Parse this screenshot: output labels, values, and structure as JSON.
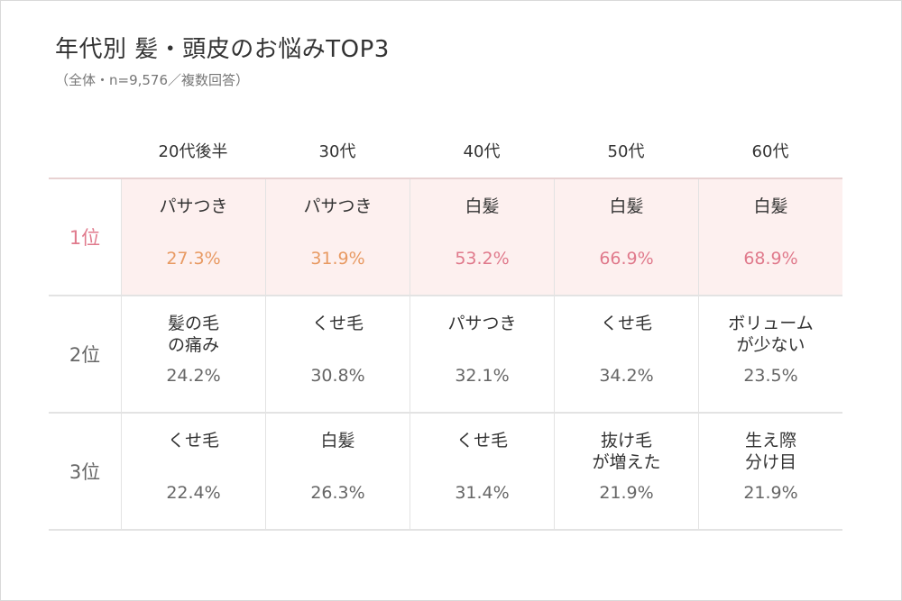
{
  "title": "年代別 髪・頭皮のお悩みTOP3",
  "subtitle": "（全体・n=9,576／複数回答）",
  "colors": {
    "orange": "#e89a63",
    "pink": "#e07a8c",
    "highlight_bg": "#fdf0ef",
    "text": "#333333",
    "muted": "#666666"
  },
  "chart_data": {
    "type": "table",
    "columns": [
      "20代後半",
      "30代",
      "40代",
      "50代",
      "60代"
    ],
    "rows": [
      {
        "rank": "1位",
        "cells": [
          {
            "item": "パサつき",
            "pct": "27.3%",
            "value": 27.3,
            "color": "orange"
          },
          {
            "item": "パサつき",
            "pct": "31.9%",
            "value": 31.9,
            "color": "orange"
          },
          {
            "item": "白髪",
            "pct": "53.2%",
            "value": 53.2,
            "color": "pink"
          },
          {
            "item": "白髪",
            "pct": "66.9%",
            "value": 66.9,
            "color": "pink"
          },
          {
            "item": "白髪",
            "pct": "68.9%",
            "value": 68.9,
            "color": "pink"
          }
        ]
      },
      {
        "rank": "2位",
        "cells": [
          {
            "item": "髪の毛\nの痛み",
            "pct": "24.2%",
            "value": 24.2
          },
          {
            "item": "くせ毛",
            "pct": "30.8%",
            "value": 30.8
          },
          {
            "item": "パサつき",
            "pct": "32.1%",
            "value": 32.1
          },
          {
            "item": "くせ毛",
            "pct": "34.2%",
            "value": 34.2
          },
          {
            "item": "ボリューム\nが少ない",
            "pct": "23.5%",
            "value": 23.5
          }
        ]
      },
      {
        "rank": "3位",
        "cells": [
          {
            "item": "くせ毛",
            "pct": "22.4%",
            "value": 22.4
          },
          {
            "item": "白髪",
            "pct": "26.3%",
            "value": 26.3
          },
          {
            "item": "くせ毛",
            "pct": "31.4%",
            "value": 31.4
          },
          {
            "item": "抜け毛\nが増えた",
            "pct": "21.9%",
            "value": 21.9
          },
          {
            "item": "生え際\n分け目",
            "pct": "21.9%",
            "value": 21.9
          }
        ]
      }
    ]
  }
}
